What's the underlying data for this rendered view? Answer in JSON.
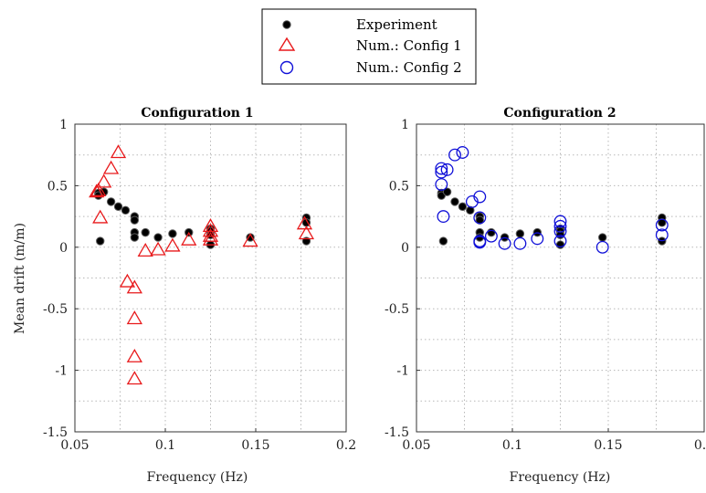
{
  "chart_data": {
    "type": "scatter",
    "legend": {
      "placement": "top-center",
      "entries": [
        {
          "label": "Experiment",
          "marker": "filled-circle",
          "color": "#000000"
        },
        {
          "label": "Num.: Config 1",
          "marker": "triangle",
          "color": "#e8191b"
        },
        {
          "label": "Num.: Config 2",
          "marker": "circle",
          "color": "#1010d8"
        }
      ]
    },
    "ylabel": "Mean drift (m/m)",
    "xlabel": "Frequency (Hz)",
    "xlim": [
      0.05,
      0.2
    ],
    "ylim": [
      -1.5,
      1
    ],
    "xticks": [
      "0.05",
      "0.1",
      "0.15",
      "0.2"
    ],
    "yticks": [
      "-1.5",
      "-1",
      "-0.5",
      "0",
      "0.5",
      "1"
    ],
    "grid": "dotted",
    "experiment": [
      [
        0.063,
        0.44
      ],
      [
        0.063,
        0.42
      ],
      [
        0.064,
        0.05
      ],
      [
        0.066,
        0.45
      ],
      [
        0.07,
        0.37
      ],
      [
        0.074,
        0.33
      ],
      [
        0.078,
        0.3
      ],
      [
        0.083,
        0.25
      ],
      [
        0.083,
        0.22
      ],
      [
        0.083,
        0.12
      ],
      [
        0.083,
        0.08
      ],
      [
        0.089,
        0.12
      ],
      [
        0.096,
        0.08
      ],
      [
        0.104,
        0.11
      ],
      [
        0.113,
        0.12
      ],
      [
        0.125,
        0.15
      ],
      [
        0.125,
        0.13
      ],
      [
        0.125,
        0.1
      ],
      [
        0.125,
        0.02
      ],
      [
        0.147,
        0.08
      ],
      [
        0.178,
        0.24
      ],
      [
        0.178,
        0.2
      ],
      [
        0.178,
        0.05
      ]
    ],
    "panels": [
      {
        "title": "Configuration 1",
        "series": "Num.: Config 1",
        "points": [
          [
            0.062,
            0.45
          ],
          [
            0.063,
            0.46
          ],
          [
            0.064,
            0.24
          ],
          [
            0.066,
            0.53
          ],
          [
            0.07,
            0.64
          ],
          [
            0.074,
            0.77
          ],
          [
            0.079,
            -0.28
          ],
          [
            0.083,
            -0.33
          ],
          [
            0.083,
            -0.58
          ],
          [
            0.083,
            -0.89
          ],
          [
            0.083,
            -1.07
          ],
          [
            0.089,
            -0.03
          ],
          [
            0.096,
            -0.02
          ],
          [
            0.104,
            0.01
          ],
          [
            0.113,
            0.06
          ],
          [
            0.125,
            0.17
          ],
          [
            0.125,
            0.13
          ],
          [
            0.125,
            0.09
          ],
          [
            0.125,
            0.06
          ],
          [
            0.147,
            0.05
          ],
          [
            0.177,
            0.19
          ],
          [
            0.178,
            0.11
          ]
        ]
      },
      {
        "title": "Configuration 2",
        "series": "Num.: Config 2",
        "points": [
          [
            0.063,
            0.61
          ],
          [
            0.063,
            0.64
          ],
          [
            0.063,
            0.51
          ],
          [
            0.064,
            0.25
          ],
          [
            0.066,
            0.63
          ],
          [
            0.07,
            0.75
          ],
          [
            0.074,
            0.77
          ],
          [
            0.079,
            0.37
          ],
          [
            0.083,
            0.41
          ],
          [
            0.083,
            0.24
          ],
          [
            0.083,
            0.05
          ],
          [
            0.083,
            0.04
          ],
          [
            0.089,
            0.09
          ],
          [
            0.096,
            0.03
          ],
          [
            0.104,
            0.03
          ],
          [
            0.113,
            0.07
          ],
          [
            0.125,
            0.21
          ],
          [
            0.125,
            0.17
          ],
          [
            0.125,
            0.13
          ],
          [
            0.125,
            0.05
          ],
          [
            0.147,
            0.0
          ],
          [
            0.178,
            0.18
          ],
          [
            0.178,
            0.1
          ]
        ]
      }
    ]
  }
}
